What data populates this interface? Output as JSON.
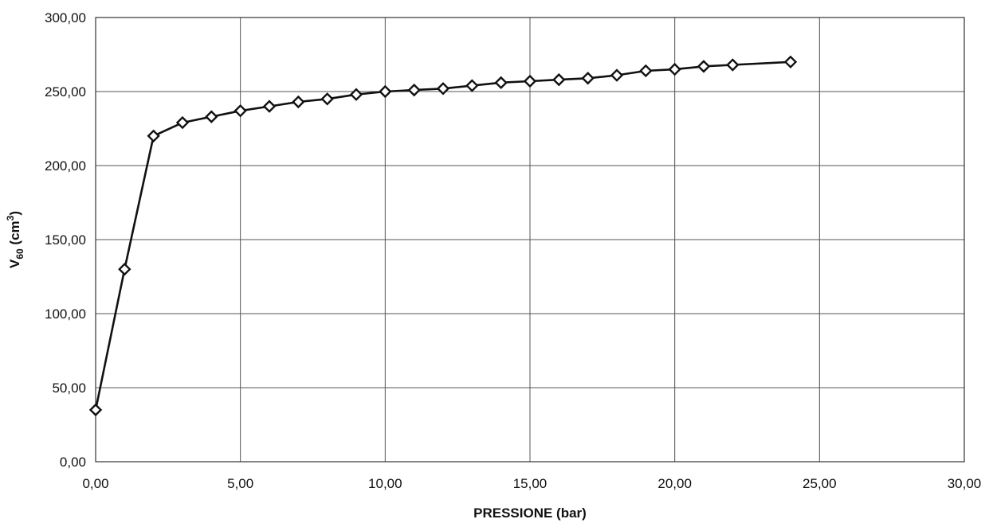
{
  "chart_data": {
    "type": "line",
    "title": "",
    "xlabel": "PRESSIONE (bar)",
    "ylabel_main": "V",
    "ylabel_subscript": "60",
    "ylabel_unit_open": " (cm",
    "ylabel_unit_superscript": "3",
    "ylabel_unit_close": ")",
    "xlim": [
      0,
      30
    ],
    "ylim": [
      0,
      300
    ],
    "xticks": [
      "0,00",
      "5,00",
      "10,00",
      "15,00",
      "20,00",
      "25,00",
      "30,00"
    ],
    "yticks": [
      "0,00",
      "50,00",
      "100,00",
      "150,00",
      "200,00",
      "250,00",
      "300,00"
    ],
    "grid": true,
    "legend": "none",
    "marker": "diamond",
    "colors": {
      "line": "#111111",
      "marker_fill": "#ffffff",
      "grid": "#555555"
    },
    "series": [
      {
        "x": [
          0,
          1,
          2,
          3,
          4,
          5,
          6,
          7,
          8,
          9,
          10,
          11,
          12,
          13,
          14,
          15,
          16,
          17,
          18,
          19,
          20,
          21,
          22,
          24
        ],
        "y": [
          35,
          130,
          220,
          229,
          233,
          237,
          240,
          243,
          245,
          248,
          250,
          251,
          252,
          254,
          256,
          257,
          258,
          259,
          261,
          264,
          265,
          267,
          268,
          270
        ]
      }
    ]
  }
}
